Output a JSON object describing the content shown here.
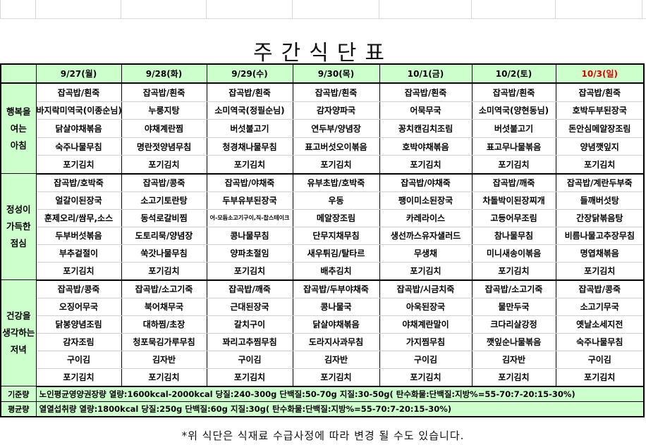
{
  "title": "주간식단표",
  "days": [
    {
      "label": "9/27(월)"
    },
    {
      "label": "9/28(화)"
    },
    {
      "label": "9/29(수)"
    },
    {
      "label": "9/30(목)"
    },
    {
      "label": "10/1(금)"
    },
    {
      "label": "10/2(토)"
    },
    {
      "label": "10/3(일)",
      "color": "#e00000"
    }
  ],
  "meals": [
    {
      "label_lines": [
        "행복을",
        "여는",
        "아침"
      ],
      "rows": [
        [
          "잡곡밥/흰죽",
          "잡곡밥/흰죽",
          "잡곡밥/흰죽",
          "잡곡밥/흰죽",
          "잡곡밥/흰죽",
          "잡곡밥/흰죽",
          "잡곡밥/흰죽"
        ],
        [
          "바지락미역국(이종순님)",
          "누룽지탕",
          "소미역국(정필순님)",
          "감자양파국",
          "어묵무국",
          "소미역국(양현동님)",
          "호박두부된장국"
        ],
        [
          "닭살야채볶음",
          "야채계란찜",
          "버섯불고기",
          "연두부/양념장",
          "꽁치캔김치조림",
          "버섯불고기",
          "돈안심메알장조림"
        ],
        [
          "숙주나물무침",
          "명란젓양념무침",
          "청경채나물무침",
          "표고버섯오이볶음",
          "호박야채볶음",
          "표고무나물볶음",
          "양념깻잎지"
        ],
        [
          "포기김치",
          "포기김치",
          "포기김치",
          "포기김치",
          "포기김치",
          "포기김치",
          "포기김치"
        ]
      ]
    },
    {
      "label_lines": [
        "정성이",
        "가득한",
        "점심"
      ],
      "rows": [
        [
          "잡곡밥/호박죽",
          "잡곡밥/콩죽",
          "잡곡밥/야채죽",
          "유부초밥/호박죽",
          "잡곡밥/야채죽",
          "잡곡밥/깨죽",
          "잡곡밥/계란두부죽"
        ],
        [
          "얼갈이된장국",
          "소고기토란탕",
          "두부유부된장국",
          "우동",
          "팽이미소된장국",
          "차돌박이된장찌개",
          "들깨버섯탕"
        ],
        [
          "훈제오리/쌈무,소스",
          "동석로갈비찜",
          "어-모듬소고기구이,직-찹스테이크",
          "메알장조림",
          "카레라이스",
          "고등어무조림",
          "간장닭볶음탕"
        ],
        [
          "두부버섯볶음",
          "도토리묵/양념장",
          "콩나물무침",
          "단무지채무침",
          "생선까스유자샐러드",
          "참나물무침",
          "비름나물고추장무침"
        ],
        [
          "부추겉절이",
          "쑥갓나물무침",
          "양파초절임",
          "새우튀김/탈타르",
          "무생채",
          "미니새송이볶음",
          "명엽채볶음"
        ],
        [
          "포기김치",
          "포기김치",
          "포기김치",
          "배추김치",
          "포기김치",
          "포기김치",
          "포기김치"
        ]
      ]
    },
    {
      "label_lines": [
        "건강을",
        "생각하는",
        "저녁"
      ],
      "rows": [
        [
          "잡곡밥/콩죽",
          "잡곡밥/소고기죽",
          "잡곡밥/깨죽",
          "잡곡밥/두부야채죽",
          "잡곡밥/시금치죽",
          "잡곡밥/소고기죽",
          "잡곡밥/콩죽"
        ],
        [
          "오징어무국",
          "북어채무국",
          "근대된장국",
          "콩나물국",
          "아욱된장국",
          "물만두국",
          "소고기무국"
        ],
        [
          "닭봉양념조림",
          "대하찜/초장",
          "갈치구이",
          "닭살야채볶음",
          "야채계란말이",
          "크다리살강정",
          "옛날소세지전"
        ],
        [
          "감자조림",
          "청포묵김가루무침",
          "꽈리고추찜무침",
          "도라지사과무침",
          "가지찜무침",
          "깻잎순나물볶음",
          "숙주나물무침"
        ],
        [
          "구이김",
          "김자반",
          "구이김",
          "김자반",
          "구이김",
          "김자반",
          "구이김"
        ],
        [
          "포기김치",
          "포기김치",
          "포기김치",
          "포기김치",
          "포기김치",
          "포기김치",
          "포기김치"
        ]
      ]
    }
  ],
  "standard": {
    "label": "기준량",
    "text": "노인평균영양권장량 열량:1600kcal-2000kcal 당질:240-300g 단백질:50-70g 지질:30-50g( 탄수화물:단백질:지방%=55-70:7-20:15-30%)"
  },
  "average": {
    "label": "평균량",
    "text": "열열섭취량 열량:1800kcal 당질:250g 단백질:60g 지질:30g( 탄수화물:단백질:지방%=55-70:7-20:15-30%)"
  },
  "note": "*위 식단은 식재료 수급사정에 따라 변경 될 수도 있습니다."
}
